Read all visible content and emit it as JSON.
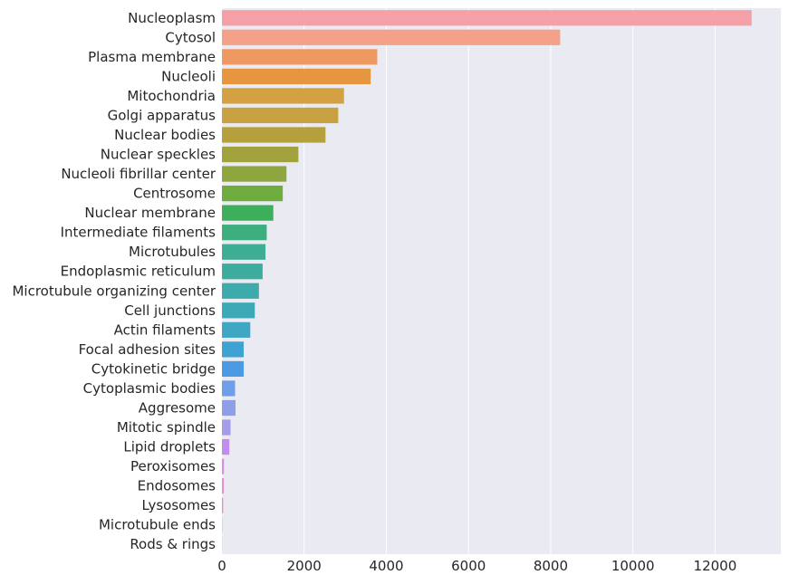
{
  "chart_data": {
    "type": "bar",
    "orientation": "horizontal",
    "title": "",
    "xlabel": "",
    "ylabel": "",
    "xlim": [
      0,
      13600
    ],
    "xticks": [
      0,
      2000,
      4000,
      6000,
      8000,
      10000,
      12000
    ],
    "xtick_labels": [
      "0",
      "2000",
      "4000",
      "6000",
      "8000",
      "10000",
      "12000"
    ],
    "grid": true,
    "background": "#EAEAF2",
    "categories": [
      "Nucleoplasm",
      "Cytosol",
      "Plasma membrane",
      "Nucleoli",
      "Mitochondria",
      "Golgi apparatus",
      "Nuclear bodies",
      "Nuclear speckles",
      "Nucleoli fibrillar center",
      "Centrosome",
      "Nuclear membrane",
      "Intermediate filaments",
      "Microtubules",
      "Endoplasmic reticulum",
      "Microtubule organizing center",
      "Cell junctions",
      "Actin filaments",
      "Focal adhesion sites",
      "Cytokinetic bridge",
      "Cytoplasmic bodies",
      "Aggresome",
      "Mitotic spindle",
      "Lipid droplets",
      "Peroxisomes",
      "Endosomes",
      "Lysosomes",
      "Microtubule ends",
      "Rods & rings"
    ],
    "values": [
      12890,
      8230,
      3780,
      3620,
      2970,
      2830,
      2520,
      1860,
      1570,
      1480,
      1250,
      1090,
      1060,
      990,
      900,
      800,
      690,
      530,
      530,
      320,
      330,
      210,
      180,
      50,
      45,
      30,
      8,
      5
    ],
    "colors": [
      "#F5A0A7",
      "#F5A088",
      "#EE9961",
      "#E6963F",
      "#D3A042",
      "#C8A142",
      "#B6A03C",
      "#A1A23E",
      "#8EA540",
      "#6FAC3E",
      "#3DAE59",
      "#3DAE7E",
      "#3DAD93",
      "#3DAC9F",
      "#3DABAC",
      "#3DA9B7",
      "#3FA6C4",
      "#3EA2D3",
      "#4A9BE4",
      "#6E9FE8",
      "#8E9FE8",
      "#A49BEA",
      "#C28DEC",
      "#D98FE6",
      "#E88ED2",
      "#EE8EC1",
      "#F191B1",
      "#F39BA6"
    ]
  }
}
